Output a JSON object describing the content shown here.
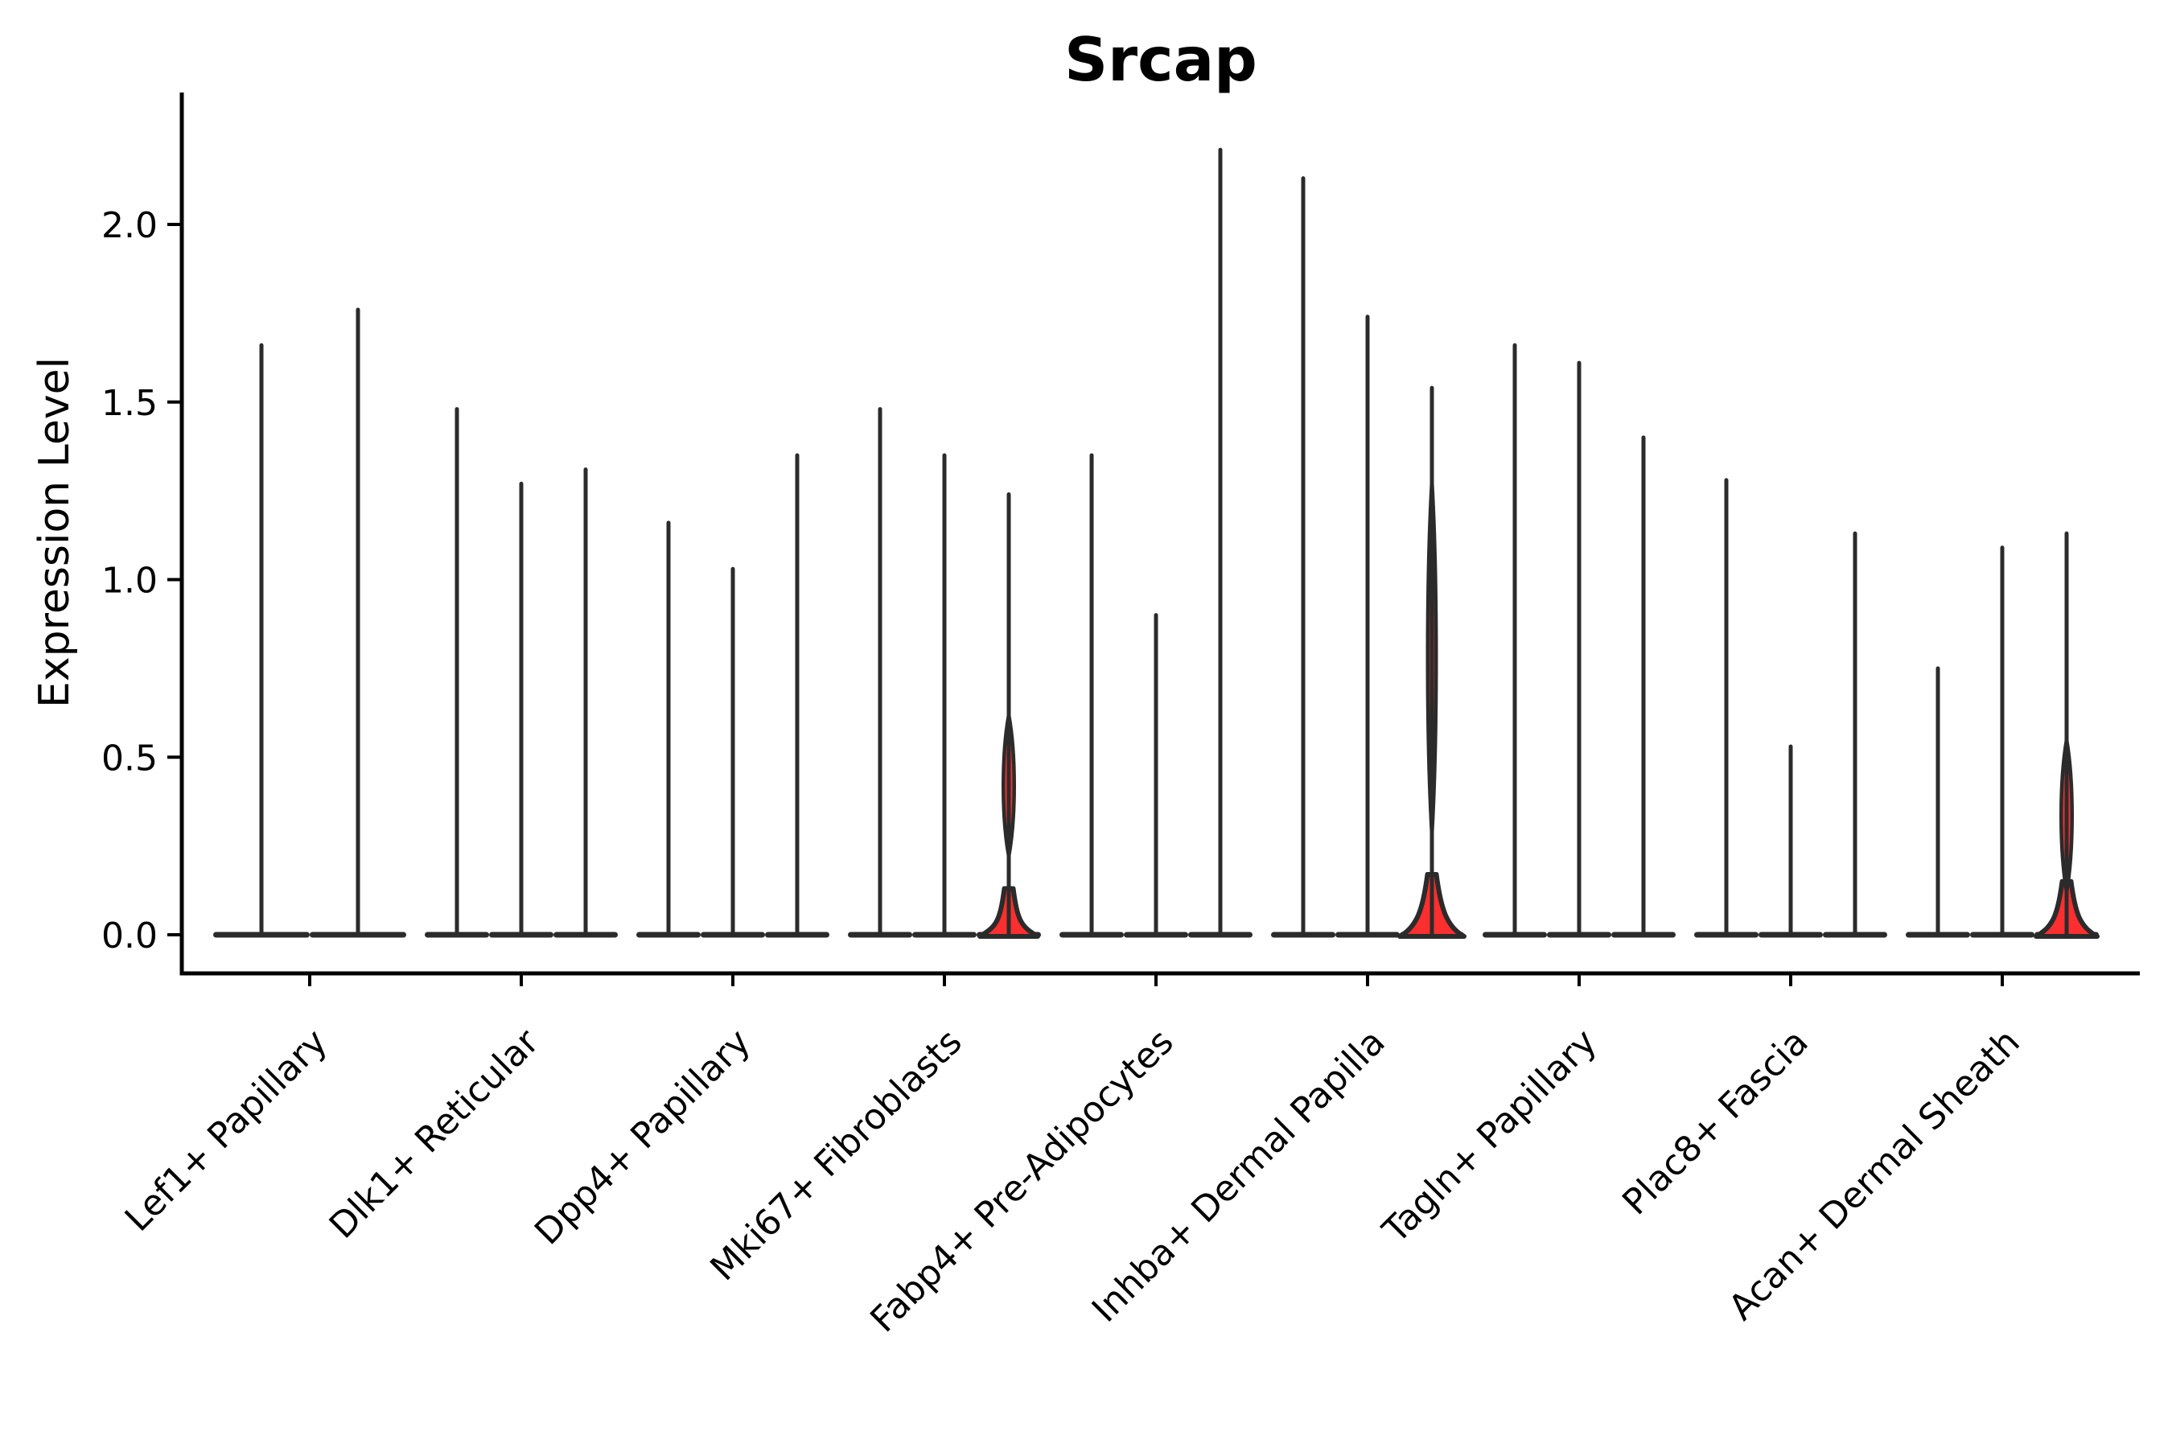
{
  "figure": {
    "title": "Srcap",
    "ylabel": "Expression Level"
  },
  "chart_data": {
    "type": "violin",
    "title": "Srcap",
    "xlabel": "",
    "ylabel": "Expression Level",
    "ylim": [
      -0.11,
      2.37
    ],
    "ytick_labels": [
      "0.0",
      "0.5",
      "1.0",
      "1.5",
      "2.0"
    ],
    "ytick_values": [
      0.0,
      0.5,
      1.0,
      1.5,
      2.0
    ],
    "grid": false,
    "legend": "none",
    "background_color": "#ffffff",
    "violin_fill_color": "#fb2f2f",
    "violin_line_color": "#2b2b2b",
    "axis_color": "#000000",
    "categories": [
      "Lef1+ Papillary",
      "Dlk1+ Reticular",
      "Dpp4+ Papillary",
      "Mki67+ Fibroblasts",
      "Fabp4+ Pre-Adipocytes",
      "Inhba+ Dermal Papilla",
      "Tagln+ Papillary",
      "Plac8+ Fascia",
      "Acan+ Dermal Sheath"
    ],
    "description": "Violin plot of Srcap expression; most violins are collapsed to thin vertical lines with flat bases at 0, values below are each violin's maximum expression. Violins with a visible red body are marked with a bulge spec (bell at 0 plus mid spindle, in expression units).",
    "groups": [
      {
        "label": "Lef1+ Papillary",
        "violins": [
          {
            "max": 1.66
          },
          {
            "max": 1.76
          }
        ]
      },
      {
        "label": "Dlk1+ Reticular",
        "violins": [
          {
            "max": 1.48
          },
          {
            "max": 1.27
          },
          {
            "max": 1.31
          }
        ]
      },
      {
        "label": "Dpp4+ Papillary",
        "violins": [
          {
            "max": 1.16
          },
          {
            "max": 1.03
          },
          {
            "max": 1.35
          }
        ]
      },
      {
        "label": "Mki67+ Fibroblasts",
        "violins": [
          {
            "max": 1.48
          },
          {
            "max": 1.35
          },
          {
            "max": 1.24,
            "bulge": {
              "bell_height": 0.13,
              "bell_halfwidth": 36,
              "spindle": [
                0.22,
                0.62
              ],
              "spindle_halfwidth": 9
            }
          }
        ]
      },
      {
        "label": "Fabp4+ Pre-Adipocytes",
        "violins": [
          {
            "max": 1.35
          },
          {
            "max": 0.9
          },
          {
            "max": 2.21
          }
        ]
      },
      {
        "label": "Inhba+ Dermal Papilla",
        "violins": [
          {
            "max": 2.13
          },
          {
            "max": 1.74
          },
          {
            "max": 1.54,
            "bulge": {
              "bell_height": 0.17,
              "bell_halfwidth": 40,
              "spindle": [
                0.28,
                1.28
              ],
              "spindle_halfwidth": 7
            }
          }
        ]
      },
      {
        "label": "Tagln+ Papillary",
        "violins": [
          {
            "max": 1.66
          },
          {
            "max": 1.61
          },
          {
            "max": 1.4
          }
        ]
      },
      {
        "label": "Plac8+ Fascia",
        "violins": [
          {
            "max": 1.28
          },
          {
            "max": 0.53
          },
          {
            "max": 1.13
          }
        ]
      },
      {
        "label": "Acan+ Dermal Sheath",
        "violins": [
          {
            "max": 0.75
          },
          {
            "max": 1.09
          },
          {
            "max": 1.13,
            "bulge": {
              "bell_height": 0.15,
              "bell_halfwidth": 38,
              "spindle": [
                0.12,
                0.55
              ],
              "spindle_halfwidth": 9
            }
          }
        ]
      }
    ]
  }
}
